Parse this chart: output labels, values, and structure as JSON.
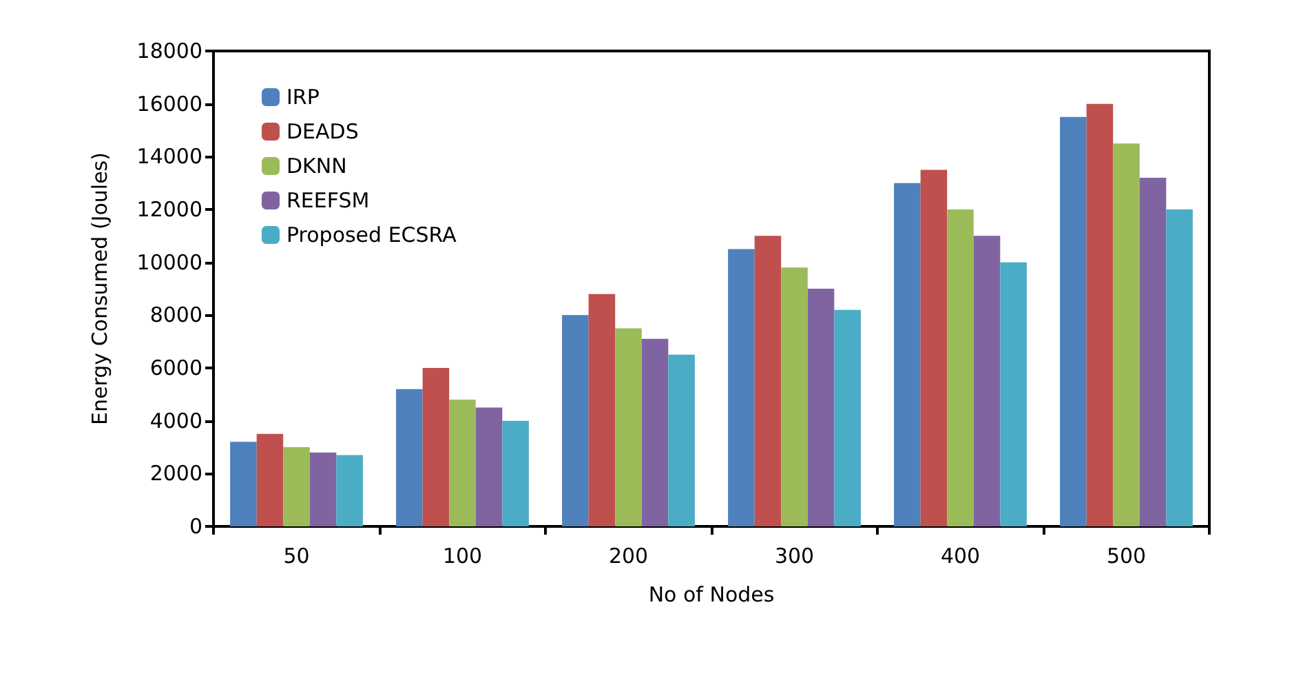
{
  "chart_data": {
    "type": "bar",
    "xlabel": "No of Nodes",
    "ylabel": "Energy Consumed (Joules)",
    "categories": [
      "50",
      "100",
      "200",
      "300",
      "400",
      "500"
    ],
    "series": [
      {
        "name": "IRP",
        "color": "#4f81bd",
        "values": [
          3200,
          5200,
          8000,
          10500,
          13000,
          15500
        ]
      },
      {
        "name": "DEADS",
        "color": "#c0504d",
        "values": [
          3500,
          6000,
          8800,
          11000,
          13500,
          16000
        ]
      },
      {
        "name": "DKNN",
        "color": "#9bbb59",
        "values": [
          3000,
          4800,
          7500,
          9800,
          12000,
          14500
        ]
      },
      {
        "name": "REEFSM",
        "color": "#8064a2",
        "values": [
          2800,
          4500,
          7100,
          9000,
          11000,
          13200
        ]
      },
      {
        "name": "Proposed ECSRA",
        "color": "#4bacc6",
        "values": [
          2700,
          4000,
          6500,
          8200,
          10000,
          12000
        ]
      }
    ],
    "ylim": [
      0,
      18000
    ],
    "yticks": [
      0,
      2000,
      4000,
      6000,
      8000,
      10000,
      12000,
      14000,
      16000,
      18000
    ],
    "grid": false,
    "legend": "top left"
  }
}
